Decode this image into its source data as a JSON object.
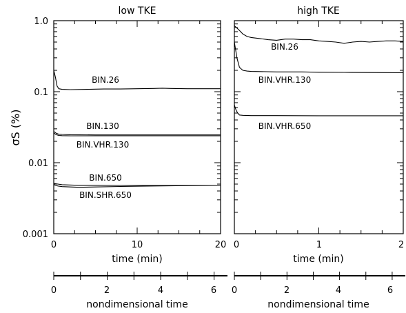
{
  "chart_data": [
    {
      "type": "line",
      "title": "low TKE",
      "xlabel": "time (min)",
      "ylabel": "σS (%)",
      "yscale": "log",
      "xlim": [
        0,
        20
      ],
      "ylim": [
        0.001,
        1.0
      ],
      "xticks": [
        "0",
        "10",
        "20"
      ],
      "yticks": [
        "0.001",
        "0.01",
        "0.1",
        "1.0"
      ],
      "grid": false,
      "series": [
        {
          "name": "BIN.26",
          "x": [
            0,
            0.2,
            0.4,
            0.6,
            1.0,
            2,
            4,
            6,
            8,
            10,
            12,
            13,
            14,
            16,
            18,
            20
          ],
          "values": [
            0.2,
            0.16,
            0.12,
            0.11,
            0.108,
            0.107,
            0.108,
            0.109,
            0.109,
            0.11,
            0.111,
            0.112,
            0.111,
            0.11,
            0.11,
            0.11
          ]
        },
        {
          "name": "BIN.130",
          "x": [
            0,
            0.3,
            0.6,
            1,
            2,
            5,
            10,
            15,
            20
          ],
          "values": [
            0.0275,
            0.026,
            0.0252,
            0.025,
            0.0248,
            0.0246,
            0.0246,
            0.0246,
            0.0246
          ]
        },
        {
          "name": "BIN.VHR.130",
          "x": [
            0,
            0.3,
            0.6,
            1,
            2,
            5,
            10,
            15,
            20
          ],
          "values": [
            0.0262,
            0.0248,
            0.0242,
            0.024,
            0.0239,
            0.0239,
            0.0239,
            0.0239,
            0.0239
          ]
        },
        {
          "name": "BIN.650",
          "x": [
            0,
            0.5,
            1,
            3,
            5,
            8,
            12,
            16,
            20
          ],
          "values": [
            0.0051,
            0.005,
            0.0049,
            0.0048,
            0.0048,
            0.00478,
            0.00478,
            0.00478,
            0.00478
          ]
        },
        {
          "name": "BIN.SHR.650",
          "x": [
            0,
            0.5,
            1,
            3,
            5,
            8,
            12,
            16,
            20
          ],
          "values": [
            0.0049,
            0.0047,
            0.0046,
            0.0045,
            0.00455,
            0.00462,
            0.0047,
            0.00475,
            0.00478
          ]
        }
      ],
      "secondary_axis": {
        "label": "nondimensional time",
        "ticks": [
          "0",
          "2",
          "4",
          "6"
        ],
        "range": [
          0,
          6.5
        ]
      }
    },
    {
      "type": "line",
      "title": "high TKE",
      "xlabel": "time (min)",
      "yscale": "log",
      "xlim": [
        0,
        2
      ],
      "ylim": [
        0.001,
        1.0
      ],
      "xticks": [
        "0",
        "1",
        "2"
      ],
      "grid": false,
      "series": [
        {
          "name": "BIN.26",
          "x": [
            0,
            0.05,
            0.1,
            0.15,
            0.2,
            0.3,
            0.4,
            0.5,
            0.6,
            0.7,
            0.8,
            0.9,
            1.0,
            1.1,
            1.2,
            1.3,
            1.4,
            1.5,
            1.6,
            1.7,
            1.8,
            1.9,
            2.0
          ],
          "values": [
            0.85,
            0.75,
            0.65,
            0.6,
            0.58,
            0.56,
            0.54,
            0.53,
            0.55,
            0.55,
            0.54,
            0.54,
            0.52,
            0.51,
            0.5,
            0.48,
            0.5,
            0.51,
            0.5,
            0.51,
            0.52,
            0.52,
            0.51
          ]
        },
        {
          "name": "BIN.VHR.130",
          "x": [
            0,
            0.03,
            0.06,
            0.1,
            0.15,
            0.2,
            0.3,
            0.5,
            0.8,
            1.0,
            1.3,
            1.6,
            2.0
          ],
          "values": [
            0.5,
            0.3,
            0.22,
            0.2,
            0.195,
            0.193,
            0.192,
            0.19,
            0.19,
            0.188,
            0.187,
            0.186,
            0.185
          ]
        },
        {
          "name": "BIN.VHR.650",
          "x": [
            0,
            0.02,
            0.04,
            0.06,
            0.1,
            0.2,
            0.5,
            1.0,
            1.5,
            2.0
          ],
          "values": [
            0.065,
            0.055,
            0.05,
            0.047,
            0.0465,
            0.046,
            0.046,
            0.0458,
            0.0458,
            0.0458
          ]
        }
      ],
      "secondary_axis": {
        "label": "nondimensional time",
        "ticks": [
          "0",
          "2",
          "4",
          "6"
        ],
        "range": [
          0,
          6.5
        ]
      }
    }
  ]
}
